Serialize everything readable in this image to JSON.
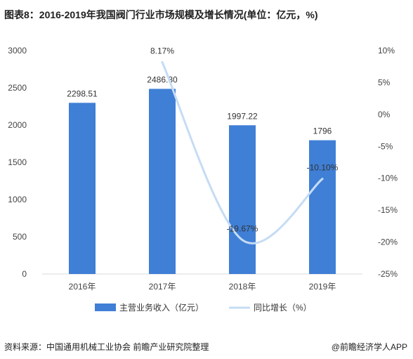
{
  "title": "图表8：2016-2019年我国阀门行业市场规模及增长情况(单位：亿元，%)",
  "source": "资料来源：中国通用机械工业协会 前瞻产业研究院整理",
  "brand": "@前瞻经济学人APP",
  "colors": {
    "bar": "#3f7fd6",
    "line": "#c5dcf4"
  },
  "chart_data": {
    "type": "bar",
    "categories": [
      "2016年",
      "2017年",
      "2018年",
      "2019年"
    ],
    "series": [
      {
        "name": "主营业务收入（亿元）",
        "type": "bar",
        "axis": "left",
        "values": [
          2298.51,
          2486.3,
          1997.22,
          1796
        ]
      },
      {
        "name": "同比增长（%）",
        "type": "line",
        "axis": "right",
        "values": [
          null,
          8.17,
          -19.67,
          -10.1
        ]
      }
    ],
    "data_labels": {
      "bar": [
        "2298.51",
        "2486.30",
        "1997.22",
        "1796"
      ],
      "line": [
        "",
        "8.17%",
        "-19.67%",
        "-10.10%"
      ]
    },
    "y_left": {
      "ylim": [
        0,
        3000
      ],
      "ticks": [
        "0",
        "500",
        "1000",
        "1500",
        "2000",
        "2500",
        "3000"
      ]
    },
    "y_right": {
      "ylim": [
        -25,
        10
      ],
      "ticks": [
        "-25%",
        "-20%",
        "-15%",
        "-10%",
        "-5%",
        "0%",
        "5%",
        "10%"
      ]
    },
    "grid": false,
    "legend": "bottom"
  }
}
